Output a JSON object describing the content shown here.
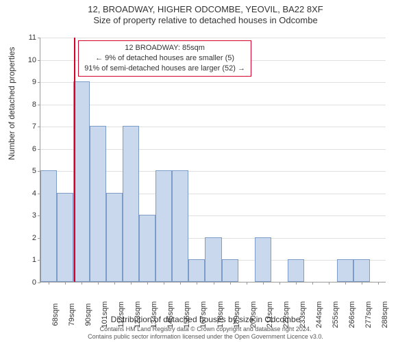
{
  "titles": {
    "line1": "12, BROADWAY, HIGHER ODCOMBE, YEOVIL, BA22 8XF",
    "line2": "Size of property relative to detached houses in Odcombe"
  },
  "axes": {
    "ylabel": "Number of detached properties",
    "xlabel": "Distribution of detached houses by size in Odcombe",
    "label_fontsize": 12
  },
  "chart": {
    "type": "histogram",
    "ylim": [
      0,
      11
    ],
    "ytick_step": 1,
    "grid_color": "#e0e0e0",
    "axis_color": "#999999",
    "background_color": "#ffffff",
    "bar_fill": "#c9d8ec",
    "bar_border": "#7a9cc6",
    "refline_color": "#d4002a",
    "annotation_border": "#d4002a",
    "bin_start": 62.5,
    "bin_width": 11,
    "bins": [
      {
        "label": "68sqm",
        "value": 5
      },
      {
        "label": "79sqm",
        "value": 4
      },
      {
        "label": "90sqm",
        "value": 9
      },
      {
        "label": "101sqm",
        "value": 7
      },
      {
        "label": "112sqm",
        "value": 4
      },
      {
        "label": "123sqm",
        "value": 7
      },
      {
        "label": "134sqm",
        "value": 3
      },
      {
        "label": "145sqm",
        "value": 5
      },
      {
        "label": "156sqm",
        "value": 5
      },
      {
        "label": "167sqm",
        "value": 1
      },
      {
        "label": "178sqm",
        "value": 2
      },
      {
        "label": "189sqm",
        "value": 1
      },
      {
        "label": "200sqm",
        "value": 0
      },
      {
        "label": "211sqm",
        "value": 2
      },
      {
        "label": "222sqm",
        "value": 0
      },
      {
        "label": "233sqm",
        "value": 1
      },
      {
        "label": "244sqm",
        "value": 0
      },
      {
        "label": "255sqm",
        "value": 0
      },
      {
        "label": "266sqm",
        "value": 1
      },
      {
        "label": "277sqm",
        "value": 1
      },
      {
        "label": "288sqm",
        "value": 0
      }
    ],
    "reference_x": 85
  },
  "annotation": {
    "line1": "12 BROADWAY: 85sqm",
    "line2": "← 9% of detached houses are smaller (5)",
    "line3": "91% of semi-detached houses are larger (52) →"
  },
  "footer": {
    "line1": "Contains HM Land Registry data © Crown copyright and database right 2024.",
    "line2": "Contains public sector information licensed under the Open Government Licence v3.0."
  }
}
